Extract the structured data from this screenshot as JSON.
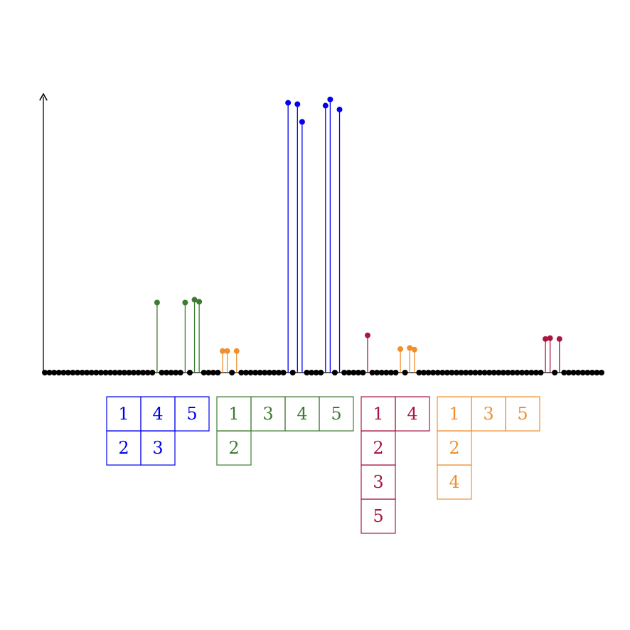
{
  "chart_data": {
    "type": "stem",
    "title": "",
    "xlabel": "",
    "ylabel": "",
    "grid": false,
    "legend": "none",
    "x_count": 120,
    "ylim": [
      0,
      10
    ],
    "colors": {
      "baseline": "#000000",
      "blue": "#0000ee",
      "green": "#3e7b32",
      "orange": "#ef8f2d",
      "crimson": "#a8173f"
    },
    "series": [
      {
        "color": "blue",
        "x": [
          52,
          54,
          55,
          60,
          61,
          63
        ],
        "y": [
          9.63,
          9.58,
          8.95,
          9.53,
          9.75,
          9.39
        ]
      },
      {
        "color": "green",
        "x": [
          24,
          30,
          32,
          33
        ],
        "y": [
          2.5,
          2.5,
          2.6,
          2.53
        ]
      },
      {
        "color": "orange",
        "x": [
          38,
          39,
          41
        ],
        "y": [
          0.77,
          0.77,
          0.77
        ]
      },
      {
        "color": "orange",
        "x": [
          76,
          78,
          79
        ],
        "y": [
          0.84,
          0.88,
          0.82
        ]
      },
      {
        "color": "crimson",
        "x": [
          69
        ],
        "y": [
          1.33
        ]
      },
      {
        "color": "crimson",
        "x": [
          107,
          108,
          110
        ],
        "y": [
          1.2,
          1.23,
          1.2
        ]
      }
    ],
    "baseline_x": [
      0,
      1,
      2,
      3,
      4,
      5,
      6,
      7,
      8,
      9,
      10,
      11,
      12,
      13,
      14,
      15,
      16,
      17,
      18,
      19,
      20,
      21,
      22,
      23,
      25,
      26,
      27,
      28,
      29,
      31,
      34,
      35,
      36,
      37,
      40,
      42,
      43,
      44,
      45,
      46,
      47,
      48,
      49,
      50,
      51,
      53,
      56,
      57,
      58,
      59,
      62,
      64,
      65,
      66,
      67,
      68,
      70,
      71,
      72,
      73,
      74,
      75,
      77,
      80,
      81,
      82,
      83,
      84,
      85,
      86,
      87,
      88,
      89,
      90,
      91,
      92,
      93,
      94,
      95,
      96,
      97,
      98,
      99,
      100,
      101,
      102,
      103,
      104,
      105,
      106,
      109,
      111,
      112,
      113,
      114,
      115,
      116,
      117,
      118,
      119
    ]
  },
  "tableaux": [
    {
      "color": "blue",
      "rows": [
        [
          "1",
          "4",
          "5"
        ],
        [
          "2",
          "3"
        ]
      ]
    },
    {
      "color": "green",
      "rows": [
        [
          "1",
          "3",
          "4",
          "5"
        ],
        [
          "2"
        ]
      ]
    },
    {
      "color": "crimson",
      "rows": [
        [
          "1",
          "4"
        ],
        [
          "2"
        ],
        [
          "3"
        ],
        [
          "5"
        ]
      ]
    },
    {
      "color": "orange",
      "rows": [
        [
          "1",
          "3",
          "5"
        ],
        [
          "2"
        ],
        [
          "4"
        ]
      ]
    }
  ]
}
